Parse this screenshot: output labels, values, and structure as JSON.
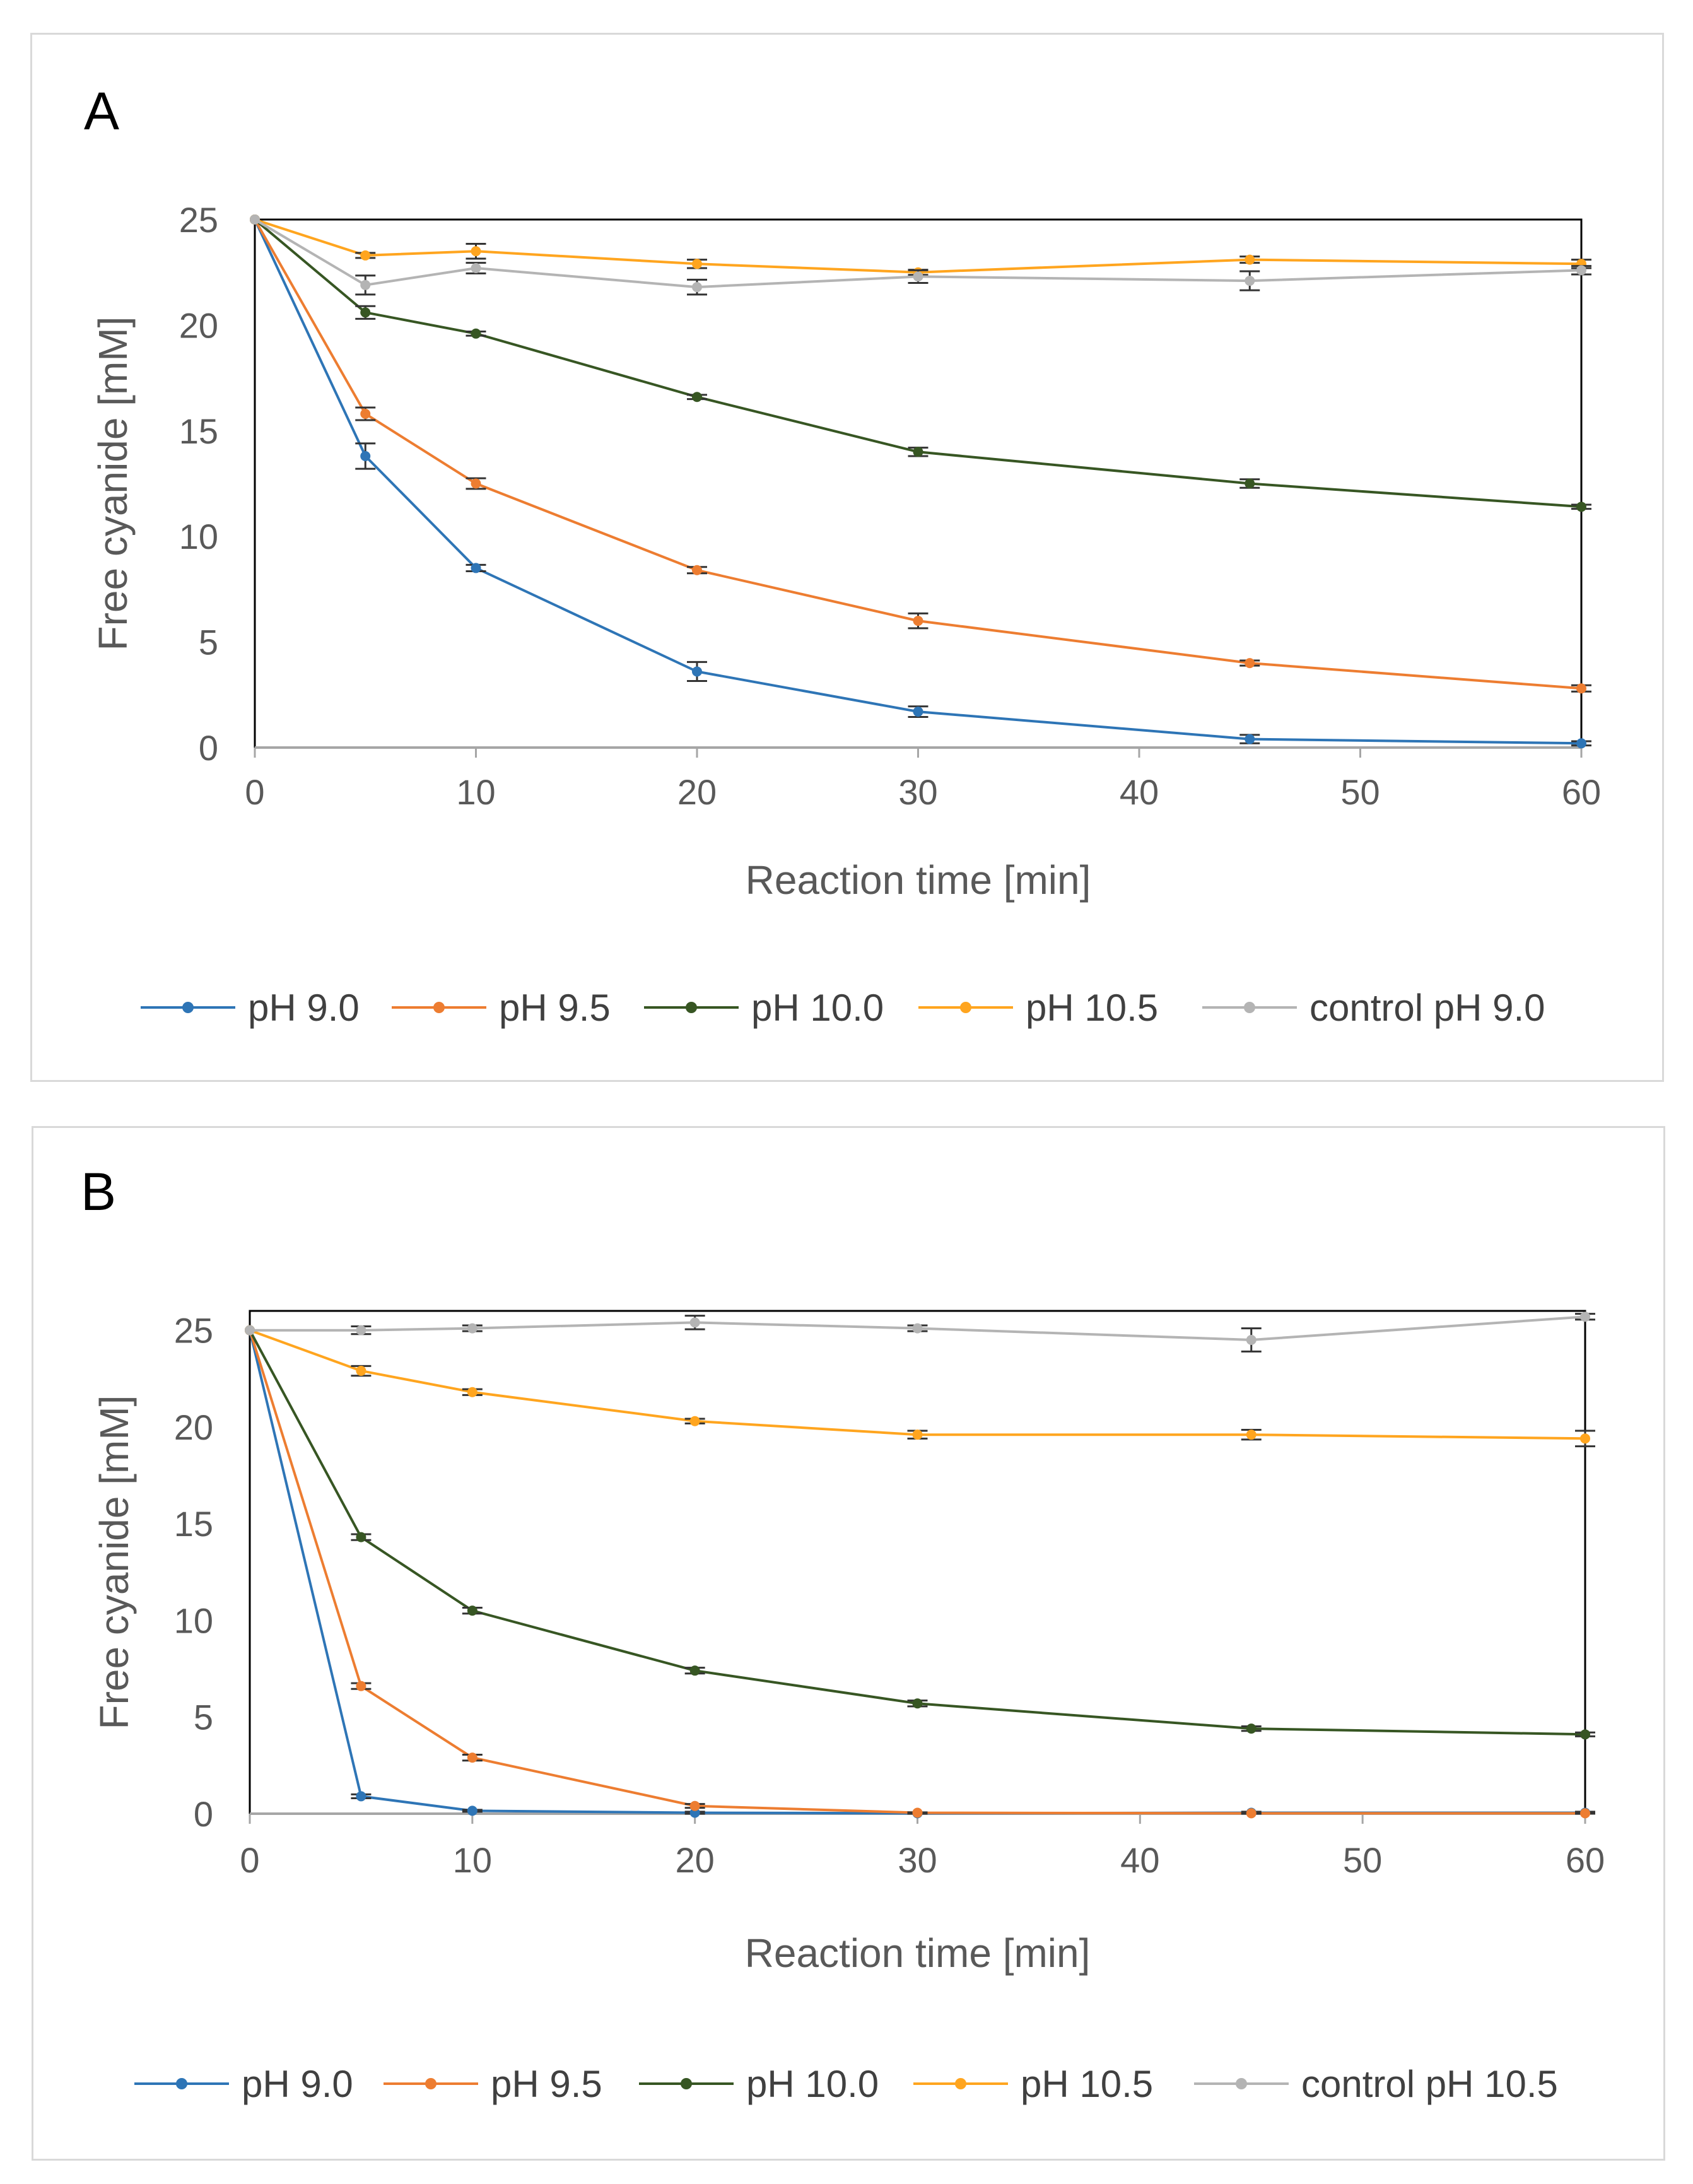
{
  "chart_data": [
    {
      "type": "line",
      "panel_label": "A",
      "xlabel": "Reaction time [min]",
      "ylabel": "Free cyanide  [mM]",
      "xlim": [
        0,
        60
      ],
      "ylim": [
        0,
        25
      ],
      "xticks": [
        "0",
        "10",
        "20",
        "30",
        "40",
        "50",
        "60"
      ],
      "yticks": [
        "0",
        "5",
        "10",
        "15",
        "20",
        "25"
      ],
      "x": [
        0,
        5,
        10,
        20,
        30,
        45,
        60
      ],
      "legend_position": "bottom",
      "series": [
        {
          "name": "pH 9.0",
          "color": "#2e75b6",
          "values": [
            25,
            13.8,
            8.5,
            3.6,
            1.7,
            0.4,
            0.2
          ],
          "errors": [
            0,
            0.6,
            0.15,
            0.45,
            0.25,
            0.2,
            0.1
          ]
        },
        {
          "name": "pH 9.5",
          "color": "#ed7d31",
          "values": [
            25,
            15.8,
            12.5,
            8.4,
            6.0,
            4.0,
            2.8
          ],
          "errors": [
            0,
            0.3,
            0.25,
            0.15,
            0.35,
            0.12,
            0.15
          ]
        },
        {
          "name": "pH 10.0",
          "color": "#375623",
          "values": [
            25,
            20.6,
            19.6,
            16.6,
            14.0,
            12.5,
            11.4
          ],
          "errors": [
            0,
            0.3,
            0.1,
            0.1,
            0.2,
            0.2,
            0.1
          ]
        },
        {
          "name": "pH 10.5",
          "color": "#ffa51f",
          "values": [
            25,
            23.3,
            23.5,
            22.9,
            22.5,
            23.1,
            22.9
          ],
          "errors": [
            0,
            0.12,
            0.35,
            0.2,
            0.12,
            0.15,
            0.2
          ]
        },
        {
          "name": "control pH 9.0",
          "color": "#b4b4b4",
          "values": [
            25,
            21.9,
            22.7,
            21.8,
            22.3,
            22.1,
            22.6
          ],
          "errors": [
            0,
            0.45,
            0.25,
            0.35,
            0.3,
            0.45,
            0.2
          ]
        }
      ]
    },
    {
      "type": "line",
      "panel_label": "B",
      "xlabel": "Reaction time [min]",
      "ylabel": "Free cyanide [mM]",
      "xlim": [
        0,
        60
      ],
      "ylim": [
        0,
        26
      ],
      "xticks": [
        "0",
        "10",
        "20",
        "30",
        "40",
        "50",
        "60"
      ],
      "yticks": [
        "0",
        "5",
        "10",
        "15",
        "20",
        "25"
      ],
      "x": [
        0,
        5,
        10,
        20,
        30,
        45,
        60
      ],
      "legend_position": "bottom",
      "series": [
        {
          "name": "pH 9.0",
          "color": "#2e75b6",
          "values": [
            25,
            0.9,
            0.15,
            0.05,
            0.02,
            0.05,
            0.05
          ],
          "errors": [
            0,
            0.1,
            0.05,
            0.05,
            0.02,
            0.05,
            0.05
          ]
        },
        {
          "name": "pH 9.5",
          "color": "#ed7d31",
          "values": [
            25,
            6.6,
            2.9,
            0.4,
            0.05,
            0.02,
            0.02
          ],
          "errors": [
            0,
            0.15,
            0.15,
            0.1,
            0.02,
            0.02,
            0.02
          ]
        },
        {
          "name": "pH 10.0",
          "color": "#375623",
          "values": [
            25,
            14.3,
            10.5,
            7.4,
            5.7,
            4.4,
            4.1
          ],
          "errors": [
            0,
            0.15,
            0.15,
            0.15,
            0.15,
            0.12,
            0.1
          ]
        },
        {
          "name": "pH 10.5",
          "color": "#ffa51f",
          "values": [
            25,
            22.9,
            21.8,
            20.3,
            19.6,
            19.6,
            19.4
          ],
          "errors": [
            0,
            0.25,
            0.15,
            0.12,
            0.2,
            0.25,
            0.4
          ]
        },
        {
          "name": "control pH 10.5",
          "color": "#b4b4b4",
          "values": [
            25,
            25.0,
            25.1,
            25.4,
            25.1,
            24.5,
            25.7
          ],
          "errors": [
            0,
            0.2,
            0.15,
            0.35,
            0.15,
            0.6,
            0.15
          ]
        }
      ]
    }
  ]
}
